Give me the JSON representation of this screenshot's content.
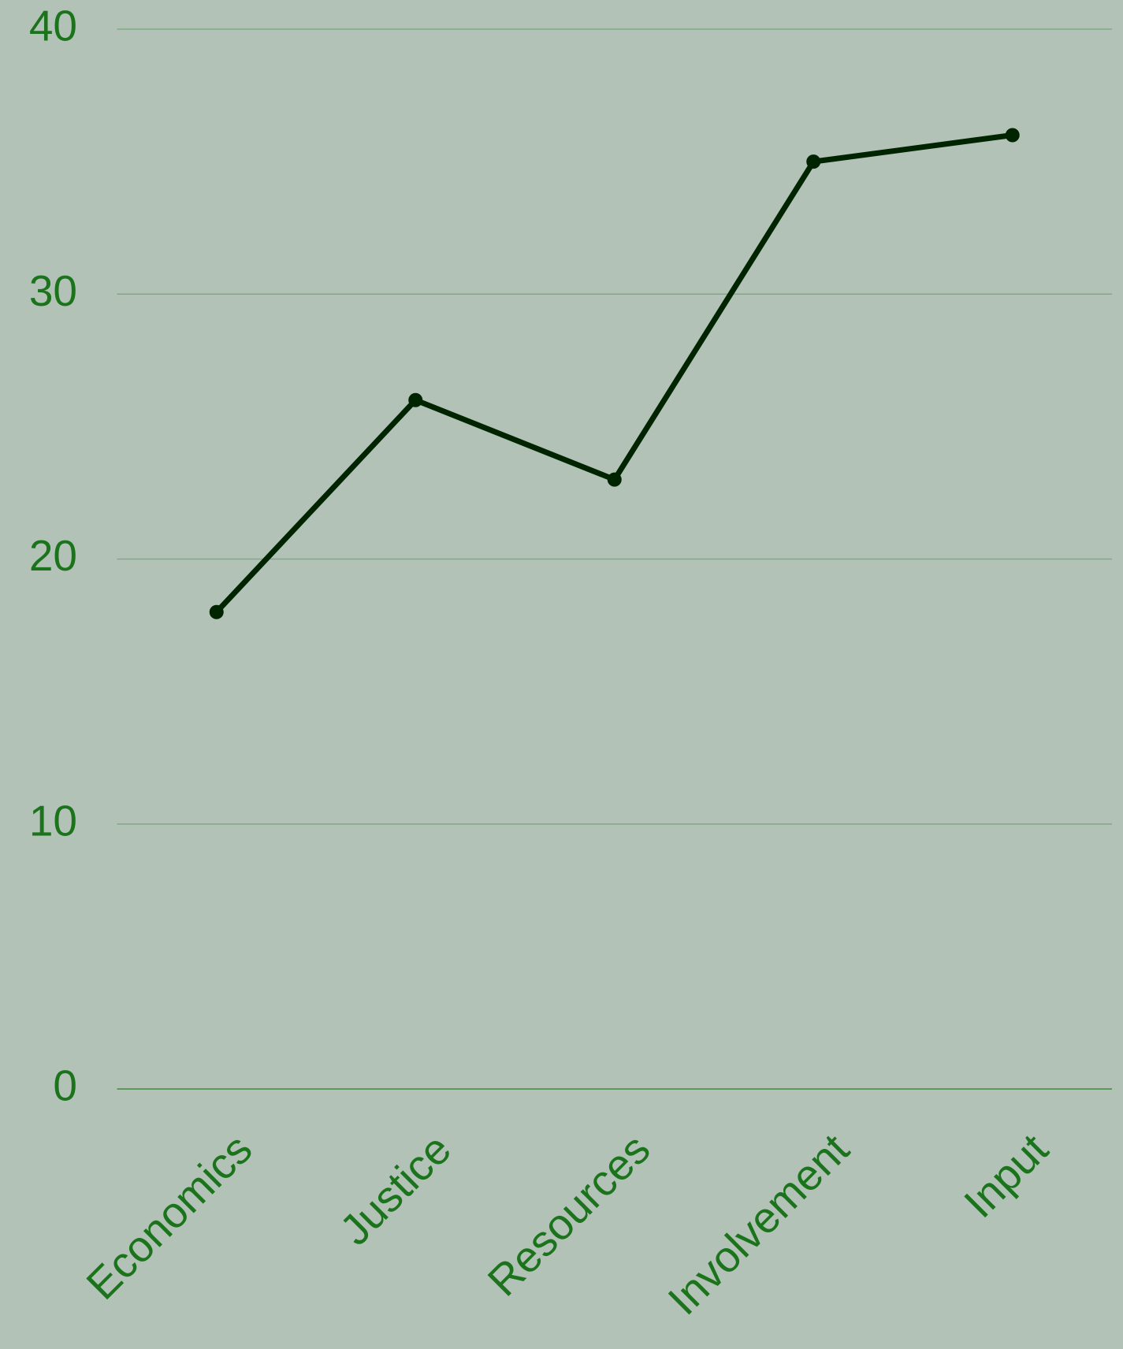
{
  "chart_data": {
    "type": "line",
    "categories": [
      "Economics",
      "Justice",
      "Resources",
      "Involvement",
      "Input"
    ],
    "values": [
      18,
      26,
      23,
      35,
      36
    ],
    "color": "#002400",
    "ylim": [
      0,
      40
    ],
    "yticks": [
      0,
      10,
      20,
      30,
      40
    ],
    "grid": true
  }
}
